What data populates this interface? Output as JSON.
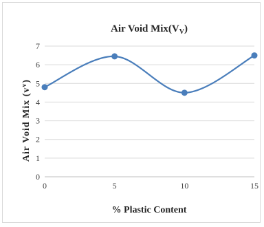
{
  "chart_data": {
    "type": "line",
    "title": "Air Void Mix(V",
    "title_subscript": "V",
    "title_suffix": ")",
    "xlabel": "% Plastic Content",
    "ylabel": "Air Void Mix (v",
    "ylabel_subscript": "v",
    "ylabel_suffix": ")",
    "x": [
      0,
      5,
      10,
      15
    ],
    "x_ticks": [
      "0",
      "5",
      "10",
      "15"
    ],
    "xlim": [
      0,
      15
    ],
    "ylim": [
      0,
      7
    ],
    "y_ticks": [
      "0",
      "1",
      "2",
      "3",
      "4",
      "5",
      "6",
      "7"
    ],
    "grid": true,
    "smooth": true,
    "series": [
      {
        "values": [
          4.8,
          6.45,
          4.5,
          6.5
        ],
        "color": "#4a7ebb"
      }
    ]
  }
}
